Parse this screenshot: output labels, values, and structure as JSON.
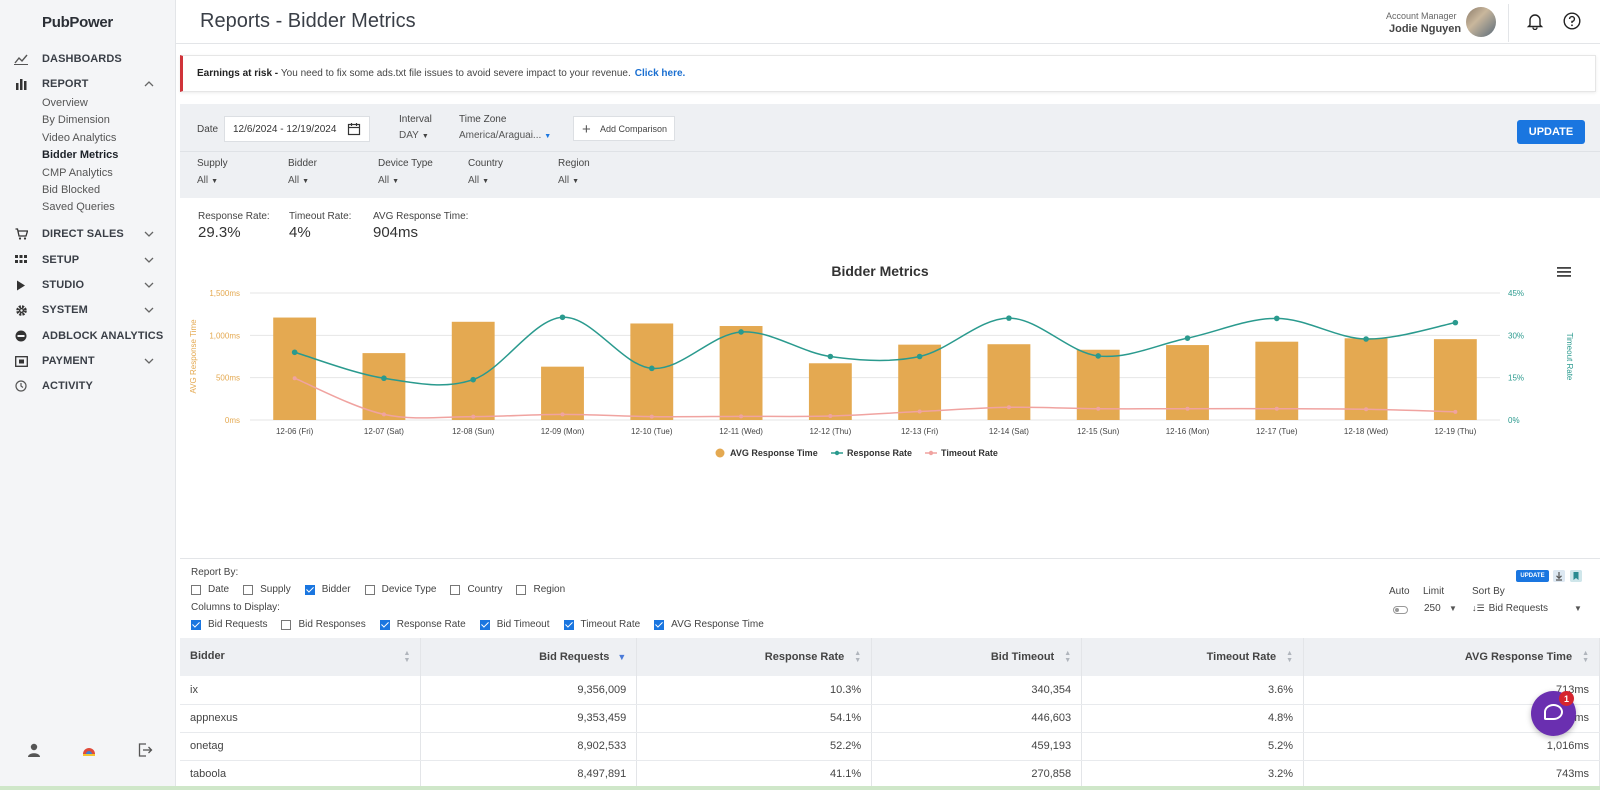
{
  "brand": {
    "logo": "PubPower"
  },
  "sidebar": {
    "items": [
      {
        "label": "DASHBOARDS",
        "icon": "chart-line-icon"
      },
      {
        "label": "REPORT",
        "icon": "bar-chart-icon"
      },
      {
        "label": "DIRECT SALES",
        "icon": "cart-icon"
      },
      {
        "label": "SETUP",
        "icon": "grid-icon"
      },
      {
        "label": "STUDIO",
        "icon": "play-icon"
      },
      {
        "label": "SYSTEM",
        "icon": "gear-icon"
      },
      {
        "label": "ADBLOCK ANALYTICS",
        "icon": "block-icon"
      },
      {
        "label": "PAYMENT",
        "icon": "payment-icon"
      },
      {
        "label": "ACTIVITY",
        "icon": "history-icon"
      }
    ],
    "report_sub": [
      "Overview",
      "By Dimension",
      "Video Analytics",
      "Bidder Metrics",
      "CMP Analytics",
      "Bid Blocked",
      "Saved Queries"
    ],
    "active_sub": "Bidder Metrics"
  },
  "header": {
    "title": "Reports - Bidder Metrics",
    "account_label": "Account Manager",
    "account_name": "Jodie Nguyen"
  },
  "alert": {
    "strong": "Earnings at risk -",
    "text": "You need to fix some ads.txt file issues to avoid severe impact to your revenue.",
    "link": "Click here.",
    "color": "#d0343a"
  },
  "filters": {
    "date_label": "Date",
    "date_value": "12/6/2024 - 12/19/2024",
    "interval_label": "Interval",
    "interval_value": "DAY",
    "timezone_label": "Time Zone",
    "timezone_value": "America/Araguai...",
    "add_comparison": "Add Comparison",
    "update": "UPDATE",
    "supply_label": "Supply",
    "supply_value": "All",
    "bidder_label": "Bidder",
    "bidder_value": "All",
    "device_label": "Device Type",
    "device_value": "All",
    "country_label": "Country",
    "country_value": "All",
    "region_label": "Region",
    "region_value": "All"
  },
  "summary": {
    "response_rate_label": "Response Rate:",
    "response_rate": "29.3%",
    "timeout_rate_label": "Timeout Rate:",
    "timeout_rate": "4%",
    "avg_label": "AVG Response Time:",
    "avg_value": "904ms"
  },
  "chart_data": {
    "type": "bar",
    "title": "Bidder Metrics",
    "categories": [
      "12-06 (Fri)",
      "12-07 (Sat)",
      "12-08 (Sun)",
      "12-09 (Mon)",
      "12-10 (Tue)",
      "12-11 (Wed)",
      "12-12 (Thu)",
      "12-13 (Fri)",
      "12-14 (Sat)",
      "12-15 (Sun)",
      "12-16 (Mon)",
      "12-17 (Tue)",
      "12-18 (Wed)",
      "12-19 (Thu)"
    ],
    "ylabel": "AVG Response Time",
    "y2label": "Timeout Rate",
    "ylim": [
      0,
      1500
    ],
    "y2lim": [
      0,
      45
    ],
    "yticks": [
      "0ms",
      "500ms",
      "1,000ms",
      "1,500ms"
    ],
    "y2ticks": [
      "0%",
      "15%",
      "30%",
      "45%"
    ],
    "legend_position": "bottom",
    "grid": true,
    "series": [
      {
        "name": "AVG Response Time",
        "type": "bar",
        "axis": "left",
        "color": "#e4a951",
        "values": [
          1210,
          790,
          1160,
          630,
          1140,
          1110,
          670,
          890,
          895,
          830,
          885,
          925,
          965,
          955
        ]
      },
      {
        "name": "Response Rate",
        "type": "line",
        "axis": "right",
        "color": "#2a9a8e",
        "values": [
          24,
          14.8,
          14.3,
          36.4,
          18.3,
          31.2,
          22.5,
          22.5,
          36.1,
          22.7,
          29,
          36,
          28.7,
          34.5
        ]
      },
      {
        "name": "Timeout Rate",
        "type": "line",
        "axis": "right",
        "color": "#f0a3a0",
        "values": [
          14.8,
          2,
          1.2,
          2,
          1.2,
          1.3,
          1.4,
          3,
          4.5,
          4,
          4,
          4,
          3.8,
          2.9
        ]
      }
    ]
  },
  "report_by": {
    "title": "Report By:",
    "options": [
      {
        "label": "Date",
        "checked": false
      },
      {
        "label": "Supply",
        "checked": false
      },
      {
        "label": "Bidder",
        "checked": true
      },
      {
        "label": "Device Type",
        "checked": false
      },
      {
        "label": "Country",
        "checked": false
      },
      {
        "label": "Region",
        "checked": false
      }
    ],
    "columns_title": "Columns to Display:",
    "columns": [
      {
        "label": "Bid Requests",
        "checked": true
      },
      {
        "label": "Bid Responses",
        "checked": false
      },
      {
        "label": "Response Rate",
        "checked": true
      },
      {
        "label": "Bid Timeout",
        "checked": true
      },
      {
        "label": "Timeout Rate",
        "checked": true
      },
      {
        "label": "AVG Response Time",
        "checked": true
      }
    ]
  },
  "controls": {
    "mini_update": "UPDATE",
    "auto_label": "Auto",
    "limit_label": "Limit",
    "limit_value": "250",
    "sortby_label": "Sort By",
    "sortby_value": "Bid Requests"
  },
  "table": {
    "headers": [
      "Bidder",
      "Bid Requests",
      "Response Rate",
      "Bid Timeout",
      "Timeout Rate",
      "AVG Response Time"
    ],
    "rows": [
      [
        "ix",
        "9,356,009",
        "10.3%",
        "340,354",
        "3.6%",
        "713ms"
      ],
      [
        "appnexus",
        "9,353,459",
        "54.1%",
        "446,603",
        "4.8%",
        "897ms"
      ],
      [
        "onetag",
        "8,902,533",
        "52.2%",
        "459,193",
        "5.2%",
        "1,016ms"
      ],
      [
        "taboola",
        "8,497,891",
        "41.1%",
        "270,858",
        "3.2%",
        "743ms"
      ]
    ]
  },
  "chat": {
    "badge": "1"
  }
}
